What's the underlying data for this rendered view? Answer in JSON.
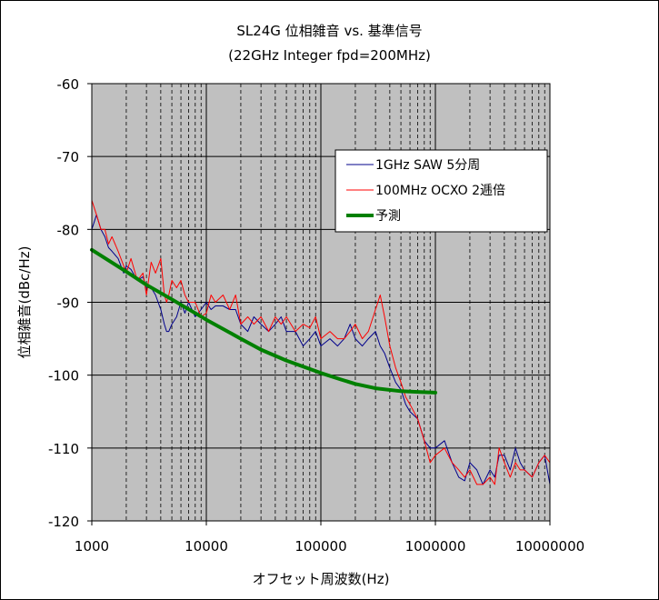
{
  "chart_data": {
    "type": "line",
    "title": "SL24G 位相雑音 vs. 基準信号",
    "subtitle": "(22GHz Integer fpd=200MHz)",
    "xlabel": "オフセット周波数(Hz)",
    "ylabel": "位相雑音(dBc/Hz)",
    "x_scale": "log",
    "xlim": [
      1000,
      10000000
    ],
    "ylim": [
      -120,
      -60
    ],
    "x_ticks": [
      1000,
      10000,
      100000,
      1000000,
      10000000
    ],
    "x_tick_labels": [
      "1000",
      "10000",
      "100000",
      "1000000",
      "10000000"
    ],
    "y_ticks": [
      -60,
      -70,
      -80,
      -90,
      -100,
      -110,
      -120
    ],
    "y_tick_labels": [
      "-60",
      "-70",
      "-80",
      "-90",
      "-100",
      "-110",
      "-120"
    ],
    "grid": true,
    "plot_background": "#c0c0c0",
    "legend_position": "top-right",
    "series": [
      {
        "name": "1GHz SAW  5分周",
        "color": "#00008b",
        "width": 1,
        "x": [
          1000,
          1100,
          1200,
          1300,
          1400,
          1500,
          1700,
          1900,
          2000,
          2200,
          2500,
          2800,
          3000,
          3300,
          3600,
          4000,
          4300,
          4500,
          4700,
          5000,
          5500,
          6000,
          6500,
          7000,
          8000,
          9000,
          10000,
          11000,
          12000,
          14000,
          16000,
          18000,
          20000,
          23000,
          26000,
          30000,
          35000,
          40000,
          45000,
          50000,
          60000,
          70000,
          80000,
          90000,
          100000,
          120000,
          140000,
          160000,
          180000,
          200000,
          230000,
          260000,
          300000,
          330000,
          360000,
          400000,
          450000,
          500000,
          550000,
          600000,
          700000,
          800000,
          900000,
          1000000,
          1200000,
          1400000,
          1600000,
          1800000,
          2000000,
          2300000,
          2600000,
          3000000,
          3300000,
          3600000,
          4000000,
          4500000,
          5000000,
          5500000,
          6000000,
          7000000,
          8000000,
          9000000,
          10000000
        ],
        "y": [
          -80,
          -78,
          -80,
          -81,
          -82.5,
          -83,
          -84,
          -86,
          -85,
          -85.5,
          -87,
          -86.5,
          -88,
          -88,
          -89,
          -91,
          -93,
          -94,
          -94,
          -93,
          -92,
          -90,
          -91.5,
          -90,
          -92,
          -91,
          -90,
          -91,
          -90.5,
          -90.5,
          -91,
          -91,
          -93,
          -94,
          -92,
          -93,
          -94,
          -93,
          -92,
          -94,
          -94,
          -96,
          -95,
          -94,
          -96,
          -95,
          -96,
          -95,
          -93,
          -95,
          -96,
          -95,
          -94,
          -96,
          -97,
          -99,
          -101,
          -102,
          -104,
          -105,
          -106,
          -109,
          -110,
          -110,
          -109,
          -112,
          -114,
          -114.5,
          -112,
          -113,
          -115,
          -113,
          -114,
          -111,
          -111,
          -113,
          -110,
          -112,
          -113,
          -114,
          -112,
          -111,
          -115
        ]
      },
      {
        "name": "100MHz OCXO 2逓倍",
        "color": "#ff0000",
        "width": 1,
        "x": [
          1000,
          1100,
          1200,
          1300,
          1400,
          1500,
          1700,
          1900,
          2000,
          2200,
          2500,
          2800,
          3000,
          3300,
          3600,
          4000,
          4300,
          4500,
          4700,
          5000,
          5500,
          6000,
          6500,
          7000,
          8000,
          9000,
          10000,
          11000,
          12000,
          14000,
          16000,
          18000,
          20000,
          23000,
          26000,
          30000,
          35000,
          40000,
          45000,
          50000,
          60000,
          70000,
          80000,
          90000,
          100000,
          120000,
          140000,
          160000,
          180000,
          200000,
          230000,
          260000,
          300000,
          330000,
          360000,
          400000,
          450000,
          500000,
          550000,
          600000,
          700000,
          800000,
          900000,
          1000000,
          1200000,
          1400000,
          1600000,
          1800000,
          2000000,
          2300000,
          2600000,
          3000000,
          3300000,
          3600000,
          4000000,
          4500000,
          5000000,
          5500000,
          6000000,
          7000000,
          8000000,
          9000000,
          10000000
        ],
        "y": [
          -76,
          -78,
          -80,
          -80,
          -82,
          -81,
          -83,
          -85,
          -86,
          -84,
          -87,
          -86,
          -89,
          -84.5,
          -86,
          -84,
          -89,
          -90,
          -89,
          -87,
          -88,
          -87,
          -89,
          -90,
          -90,
          -92,
          -91.5,
          -89,
          -90,
          -89,
          -91,
          -89,
          -93,
          -92,
          -93,
          -92,
          -94,
          -92,
          -93,
          -92,
          -94,
          -93,
          -93.5,
          -92,
          -95,
          -94,
          -95,
          -95,
          -94,
          -93,
          -95,
          -94,
          -91,
          -89,
          -92,
          -96,
          -99,
          -101,
          -103,
          -104,
          -106,
          -109,
          -112,
          -111,
          -110,
          -112,
          -113,
          -114,
          -113,
          -115,
          -115,
          -114,
          -115,
          -110,
          -112,
          -114,
          -112,
          -113,
          -113,
          -114,
          -112,
          -111,
          -112
        ]
      },
      {
        "name": "予測",
        "color": "#008000",
        "width": 4,
        "x": [
          1000,
          2000,
          3000,
          5000,
          10000,
          20000,
          30000,
          50000,
          100000,
          150000,
          200000,
          300000,
          500000,
          700000,
          1000000
        ],
        "y": [
          -82.8,
          -85.8,
          -87.6,
          -89.6,
          -92.4,
          -95,
          -96.5,
          -98,
          -99.7,
          -100.6,
          -101.2,
          -101.8,
          -102.2,
          -102.3,
          -102.4
        ]
      }
    ]
  }
}
